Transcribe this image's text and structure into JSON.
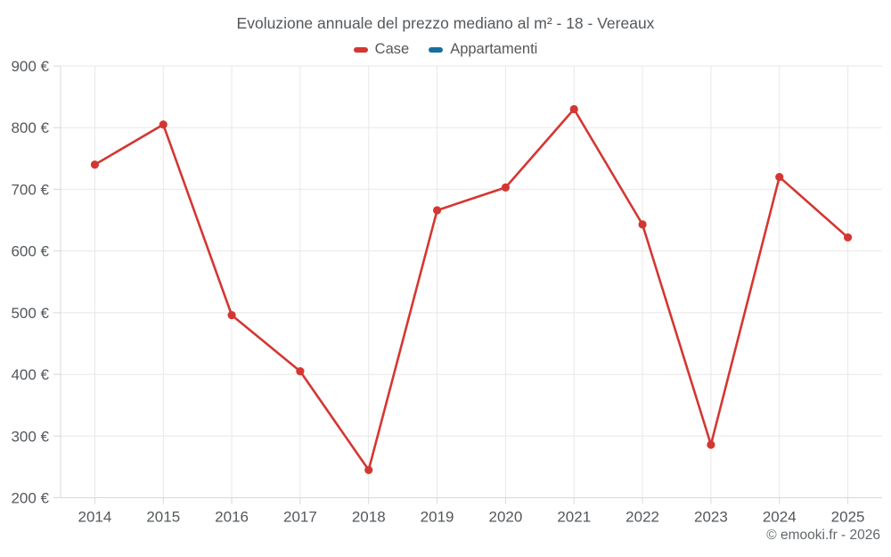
{
  "chart_data": {
    "type": "line",
    "title": "Evoluzione annuale del prezzo mediano al m² - 18 - Vereaux",
    "categories": [
      "2014",
      "2015",
      "2016",
      "2017",
      "2018",
      "2019",
      "2020",
      "2021",
      "2022",
      "2023",
      "2024",
      "2025"
    ],
    "series": [
      {
        "name": "Case",
        "color": "#d43733",
        "values": [
          740,
          805,
          496,
          405,
          245,
          666,
          703,
          830,
          643,
          286,
          720,
          622
        ]
      },
      {
        "name": "Appartamenti",
        "color": "#16709e",
        "values": []
      }
    ],
    "ylim": [
      200,
      900
    ],
    "ytick_step": 100,
    "ytick_labels": [
      "200 €",
      "300 €",
      "400 €",
      "500 €",
      "600 €",
      "700 €",
      "800 €",
      "900 €"
    ],
    "ylabel_format": "{value} €",
    "xlabel": "",
    "ylabel": "",
    "grid": true,
    "legend_position": "top",
    "footer": "© emooki.fr - 2026"
  },
  "style": {
    "grid_color": "#e8e8e8",
    "axis_color": "#d8d8d8",
    "tick_label_color": "#54585c",
    "title_color": "#54585c",
    "footer_color": "#63686b",
    "background": "#ffffff"
  }
}
